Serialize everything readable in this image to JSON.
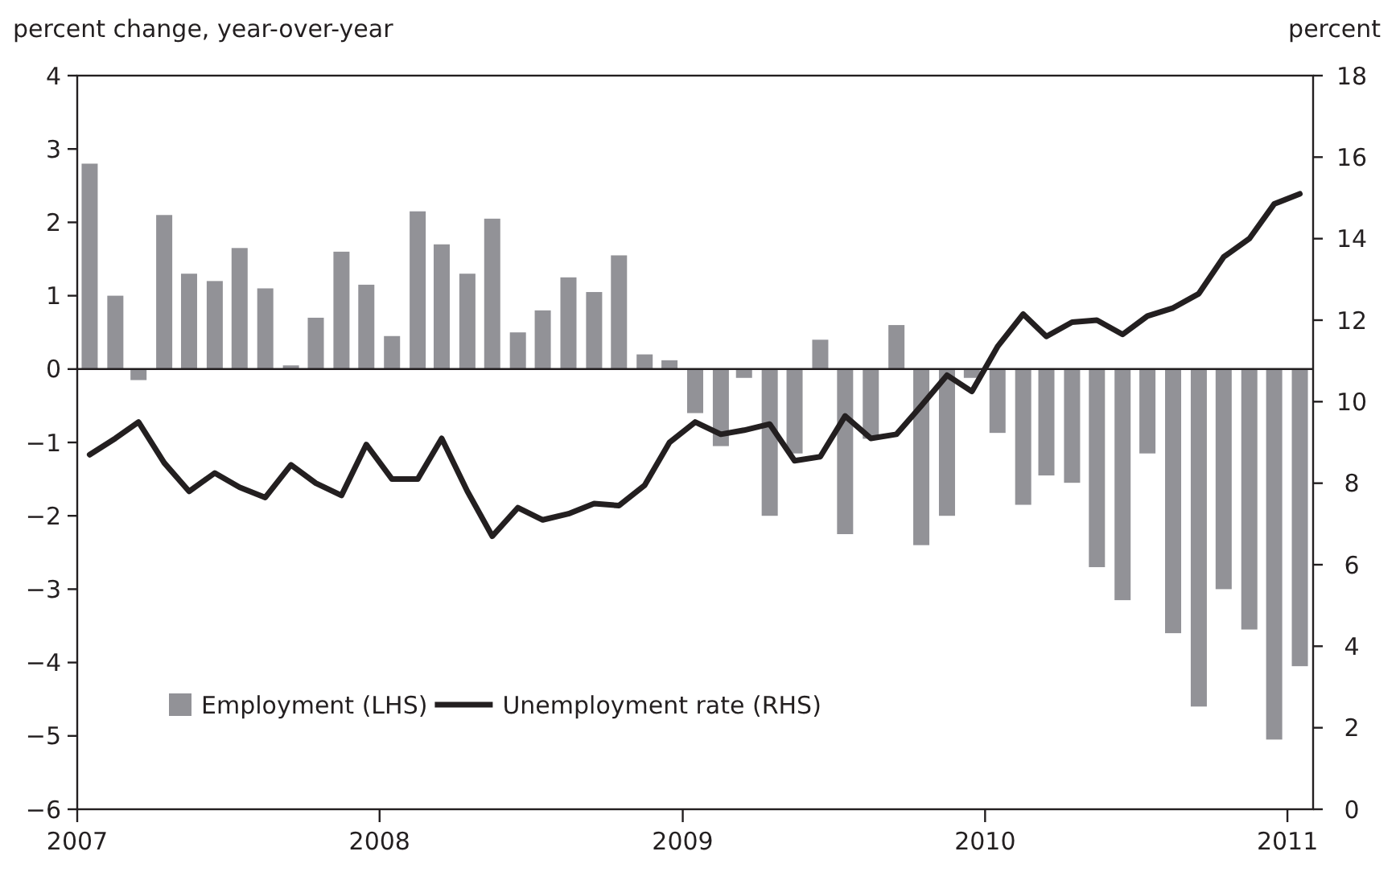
{
  "chart_data": {
    "type": "bar",
    "ylabel": "percent change, year-over-year",
    "y2label": "percent",
    "x": [
      "2007-01-16",
      "2007-02-16",
      "2007-03-16",
      "2007-04-16",
      "2007-05-16",
      "2007-06-16",
      "2007-07-16",
      "2007-08-16",
      "2007-09-16",
      "2007-10-16",
      "2007-11-16",
      "2007-12-16",
      "2008-01-16",
      "2008-02-16",
      "2008-03-16",
      "2008-04-16",
      "2008-05-16",
      "2008-06-16",
      "2008-07-16",
      "2008-08-16",
      "2008-09-16",
      "2008-10-16",
      "2008-11-16",
      "2008-12-16",
      "2009-01-16",
      "2009-02-16",
      "2009-03-16",
      "2009-04-16",
      "2009-05-16",
      "2009-06-16",
      "2009-07-16",
      "2009-08-16",
      "2009-09-16",
      "2009-10-16",
      "2009-11-16",
      "2009-12-16",
      "2010-01-16",
      "2010-02-16",
      "2010-03-16",
      "2010-04-16",
      "2010-05-16",
      "2010-06-16",
      "2010-07-16",
      "2010-08-16",
      "2010-09-16",
      "2010-10-16",
      "2010-11-16",
      "2010-12-16",
      "2011-01-16"
    ],
    "series": [
      {
        "name": "Employment (LHS)",
        "color": "#929297",
        "values": [
          2.8,
          1.0,
          -0.15,
          2.1,
          1.3,
          1.2,
          1.65,
          1.1,
          0.05,
          0.7,
          1.6,
          1.15,
          0.45,
          2.15,
          1.7,
          1.3,
          2.05,
          0.5,
          0.8,
          1.25,
          1.05,
          1.55,
          0.2,
          0.12,
          -0.6,
          -1.05,
          -0.12,
          -2.0,
          -1.15,
          0.4,
          -2.25,
          -0.95,
          0.6,
          -2.4,
          -2.0,
          -0.12,
          -0.87,
          -1.85,
          -1.45,
          -1.55,
          -2.7,
          -3.15,
          -1.15,
          -3.6,
          -4.6,
          -3.0,
          -3.55,
          -5.05,
          -4.05
        ]
      },
      {
        "name": "Unemployment rate (RHS)",
        "type": "line",
        "axis": "y2",
        "color": "#231f20",
        "values": [
          8.7,
          9.1,
          9.5,
          8.5,
          7.8,
          8.25,
          7.9,
          7.65,
          8.45,
          8.0,
          7.7,
          8.95,
          8.1,
          8.1,
          9.1,
          7.8,
          6.7,
          7.4,
          7.1,
          7.25,
          7.5,
          7.45,
          7.95,
          9.0,
          9.5,
          9.2,
          9.3,
          9.45,
          8.55,
          8.65,
          9.65,
          9.1,
          9.2,
          9.9,
          10.65,
          10.25,
          11.35,
          12.15,
          11.6,
          11.95,
          12.0,
          11.65,
          12.1,
          12.3,
          12.65,
          13.55,
          14.0,
          14.85,
          15.1
        ]
      }
    ],
    "xlim": [
      "2007",
      "2011-02"
    ],
    "xticks": [
      "2007",
      "2008",
      "2009",
      "2010",
      "2011"
    ],
    "ylim": [
      -6,
      4
    ],
    "yticks": [
      -6,
      -5,
      -4,
      -3,
      -2,
      -1,
      0,
      1,
      2,
      3,
      4
    ],
    "y2lim": [
      0,
      18
    ],
    "y2ticks": [
      0,
      2,
      4,
      6,
      8,
      10,
      12,
      14,
      16,
      18
    ],
    "legend": "bottom left",
    "line_style": "solid",
    "marker": "none"
  }
}
